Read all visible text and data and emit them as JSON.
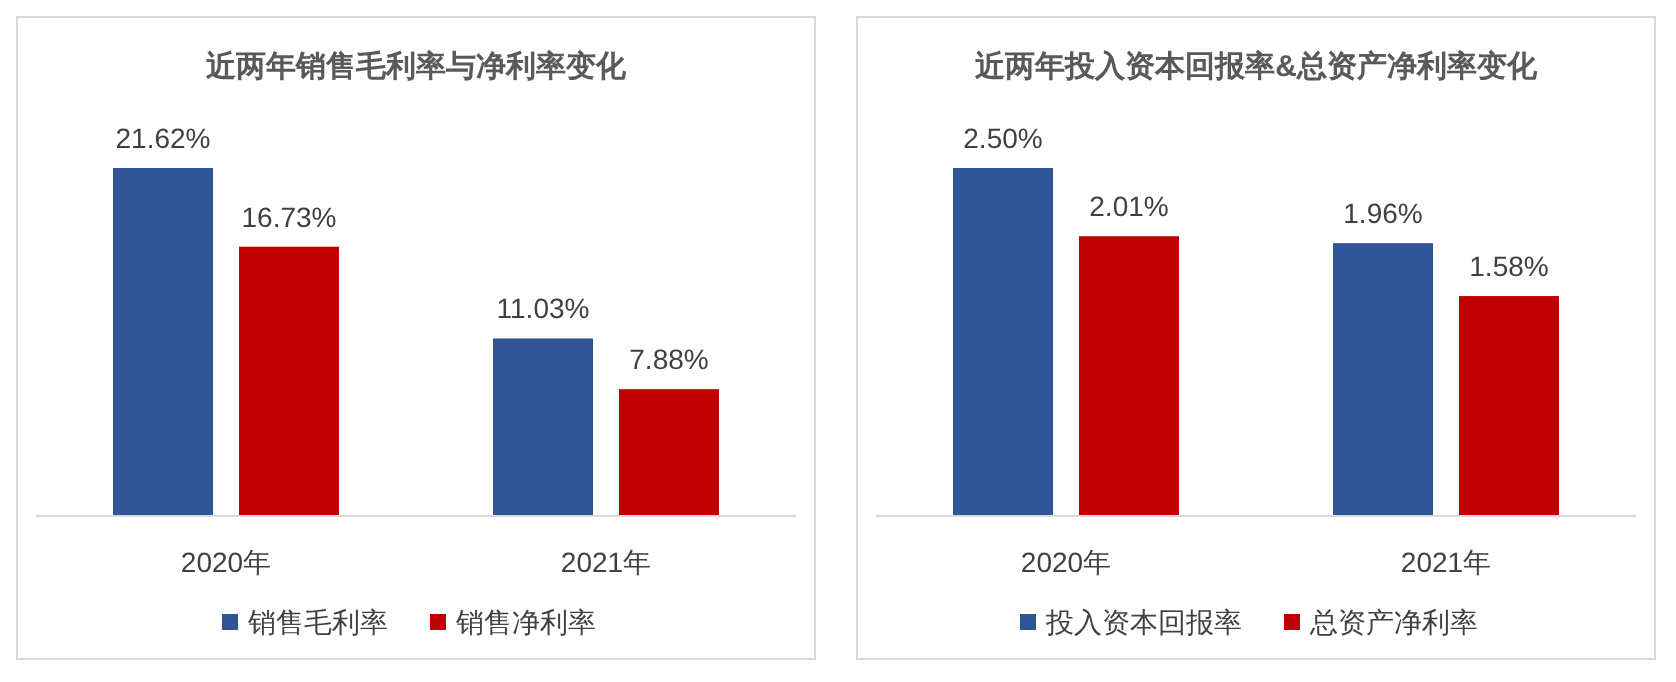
{
  "chart_data": [
    {
      "type": "bar",
      "title": "近两年销售毛利率与净利率变化",
      "categories": [
        "2020年",
        "2021年"
      ],
      "series": [
        {
          "name": "销售毛利率",
          "color": "#2f5597",
          "values": [
            21.62,
            11.03
          ],
          "value_labels": [
            "21.62%",
            "11.03%"
          ]
        },
        {
          "name": "销售净利率",
          "color": "#c00000",
          "values": [
            16.73,
            7.88
          ],
          "value_labels": [
            "16.73%",
            "7.88%"
          ]
        }
      ],
      "legend": "bottom",
      "grid": false
    },
    {
      "type": "bar",
      "title": "近两年投入资本回报率&总资产净利率变化",
      "categories": [
        "2020年",
        "2021年"
      ],
      "series": [
        {
          "name": "投入资本回报率",
          "color": "#2f5597",
          "values": [
            2.5,
            1.96
          ],
          "value_labels": [
            "2.50%",
            "1.96%"
          ]
        },
        {
          "name": "总资产净利率",
          "color": "#c00000",
          "values": [
            2.01,
            1.58
          ],
          "value_labels": [
            "2.01%",
            "1.58%"
          ]
        }
      ],
      "legend": "bottom",
      "grid": false
    }
  ]
}
